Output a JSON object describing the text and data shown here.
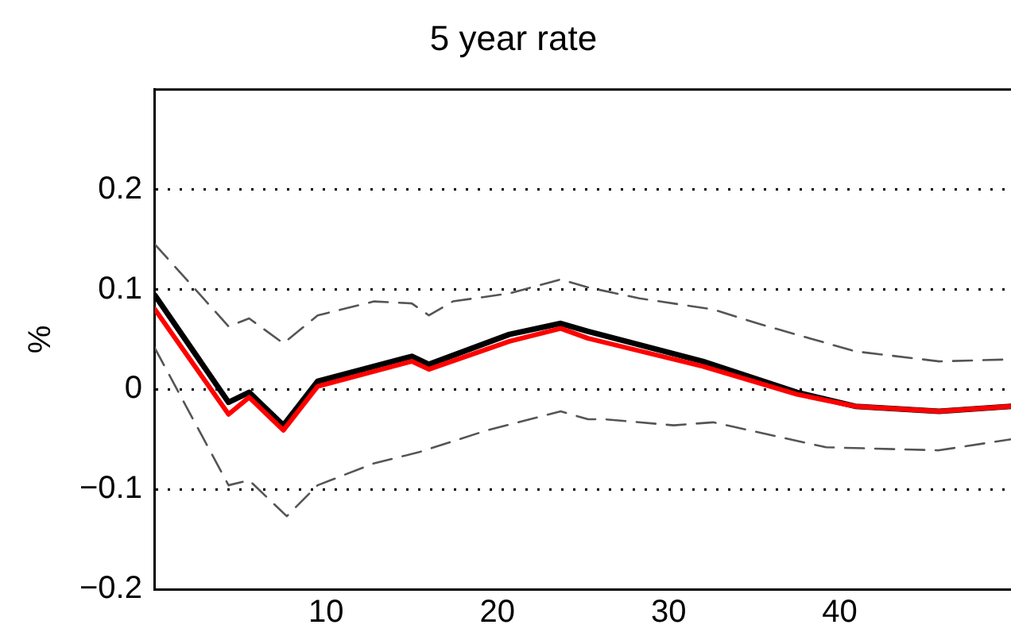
{
  "chart_data": {
    "type": "line",
    "title": "5 year rate",
    "ylabel": "%",
    "xlim": [
      0,
      50
    ],
    "xticks": [
      10,
      20,
      30,
      40
    ],
    "ylim": [
      -0.2,
      0.3
    ],
    "yticks": [
      -0.2,
      -0.1,
      0,
      0.1,
      0.2
    ],
    "grid": "y",
    "legend": false,
    "marker": "none",
    "series": [
      {
        "color": "#555555",
        "line_style": "dashed",
        "x": [
          0,
          4.3,
          5.5,
          7.5,
          9.5,
          12.8,
          15,
          16,
          17.4,
          20.7,
          23.7,
          25.3,
          28.3,
          32.6,
          35.2,
          40.9,
          45.8,
          50
        ],
        "values": [
          0.145,
          0.063,
          0.071,
          0.046,
          0.074,
          0.088,
          0.086,
          0.074,
          0.088,
          0.096,
          0.11,
          0.102,
          0.091,
          0.08,
          0.066,
          0.038,
          0.028,
          0.03
        ]
      },
      {
        "color": "#555555",
        "line_style": "dashed",
        "x": [
          0,
          4.3,
          5.5,
          7.7,
          9.5,
          12.8,
          15.4,
          19.4,
          23.7,
          25.3,
          26.3,
          30.3,
          32.6,
          39.2,
          45.8,
          50
        ],
        "values": [
          0.041,
          -0.096,
          -0.091,
          -0.127,
          -0.096,
          -0.074,
          -0.063,
          -0.041,
          -0.022,
          -0.03,
          -0.03,
          -0.036,
          -0.033,
          -0.058,
          -0.061,
          -0.05
        ]
      },
      {
        "color": "#000000",
        "line_style": "solid",
        "x": [
          0,
          4.3,
          5.5,
          7.5,
          9.5,
          15,
          16,
          20.7,
          23.7,
          25.3,
          32,
          37.5,
          40.9,
          45.8,
          50
        ],
        "values": [
          0.094,
          -0.013,
          -0.003,
          -0.036,
          0.008,
          0.033,
          0.025,
          0.055,
          0.066,
          0.058,
          0.028,
          -0.003,
          -0.017,
          -0.022,
          -0.017
        ]
      },
      {
        "color": "#ff0000",
        "line_style": "solid",
        "x": [
          0,
          4.3,
          5.5,
          7.5,
          9.5,
          15,
          16,
          20.7,
          23.7,
          25.3,
          32,
          37.5,
          40.9,
          45.8,
          50
        ],
        "values": [
          0.08,
          -0.025,
          -0.008,
          -0.041,
          0.003,
          0.028,
          0.02,
          0.048,
          0.061,
          0.051,
          0.023,
          -0.005,
          -0.017,
          -0.022,
          -0.017
        ]
      }
    ]
  }
}
